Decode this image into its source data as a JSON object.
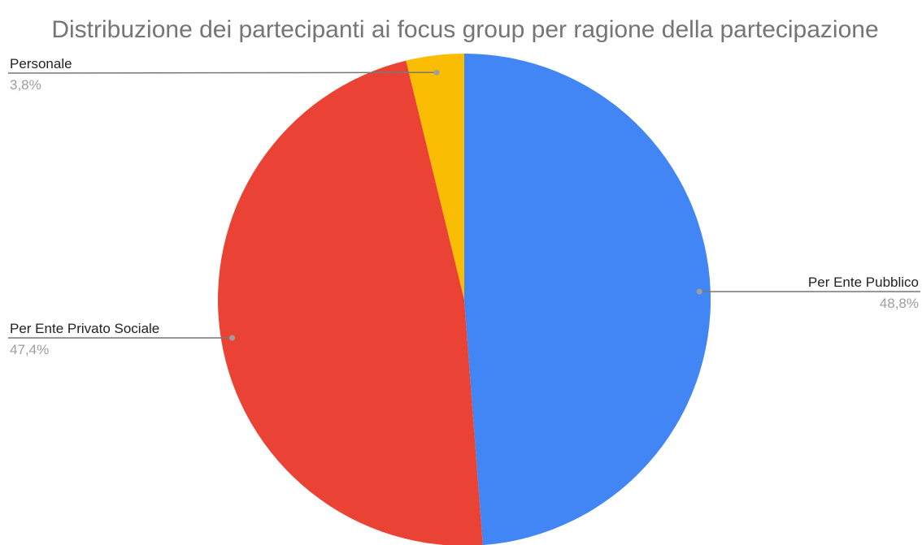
{
  "chart_data": {
    "type": "pie",
    "title": "Distribuzione dei partecipanti ai focus group per ragione della partecipazione",
    "slices": [
      {
        "label": "Per Ente Pubblico",
        "value": 48.8,
        "value_label": "48,8%",
        "color": "#4285f4"
      },
      {
        "label": "Per Ente Privato Sociale",
        "value": 47.4,
        "value_label": "47,4%",
        "color": "#ea4335"
      },
      {
        "label": "Personale",
        "value": 3.8,
        "value_label": "3,8%",
        "color": "#fbbc04"
      }
    ],
    "start_angle_deg": 0,
    "direction": "clockwise",
    "legend": "none",
    "labels": "outside-with-leader-lines"
  }
}
